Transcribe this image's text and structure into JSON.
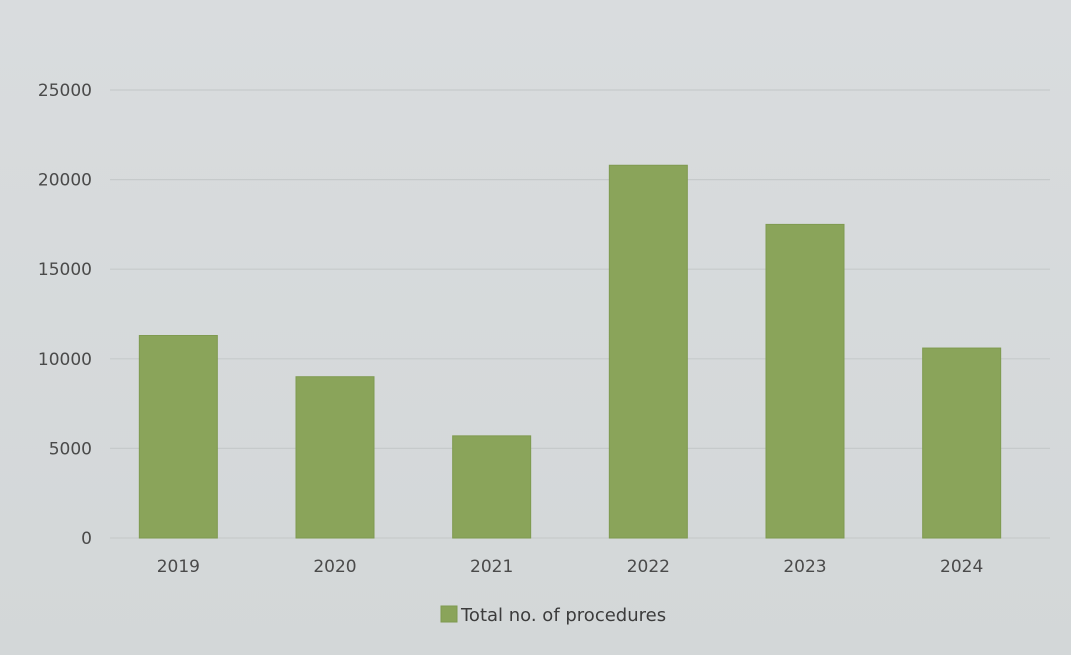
{
  "chart_data": {
    "type": "bar",
    "categories": [
      "2019",
      "2020",
      "2021",
      "2022",
      "2023",
      "2024"
    ],
    "series": [
      {
        "name": "Total no. of procedures",
        "values": [
          11300,
          9000,
          5700,
          20800,
          17500,
          10600
        ]
      }
    ],
    "y_ticks": [
      "0",
      "5000",
      "10000",
      "15000",
      "20000",
      "25000"
    ],
    "ylim": [
      0,
      25000
    ],
    "grid": true,
    "legend_position": "bottom",
    "bar_color": "#8aa45a"
  }
}
